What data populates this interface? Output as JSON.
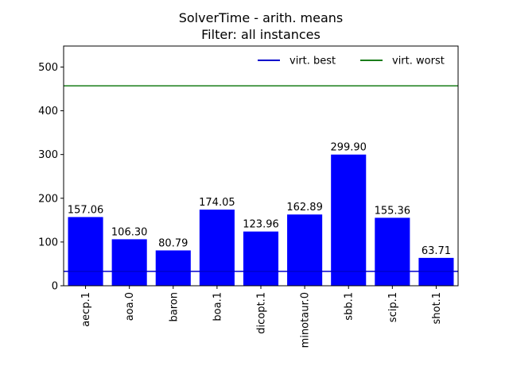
{
  "chart_data": {
    "type": "bar",
    "title": "SolverTime - arith. means",
    "subtitle": "Filter: all instances",
    "categories": [
      "aecp.1",
      "aoa.0",
      "baron",
      "boa.1",
      "dicopt.1",
      "minotaur.0",
      "sbb.1",
      "scip.1",
      "shot.1"
    ],
    "values": [
      157.06,
      106.3,
      80.79,
      174.05,
      123.96,
      162.89,
      299.9,
      155.36,
      63.71
    ],
    "data_labels": [
      "157.06",
      "106.30",
      "80.79",
      "174.05",
      "123.96",
      "162.89",
      "299.90",
      "155.36",
      "63.71"
    ],
    "bar_color": "#0000ff",
    "ylim": [
      0,
      548
    ],
    "yticks": [
      0,
      100,
      200,
      300,
      400,
      500
    ],
    "xlabel": "",
    "ylabel": "",
    "grid": false,
    "reference_lines": [
      {
        "name": "virt. best",
        "value": 33,
        "color": "#0000cc"
      },
      {
        "name": "virt. worst",
        "value": 457,
        "color": "#1a7d1a"
      }
    ],
    "legend_placement": "top-right"
  }
}
